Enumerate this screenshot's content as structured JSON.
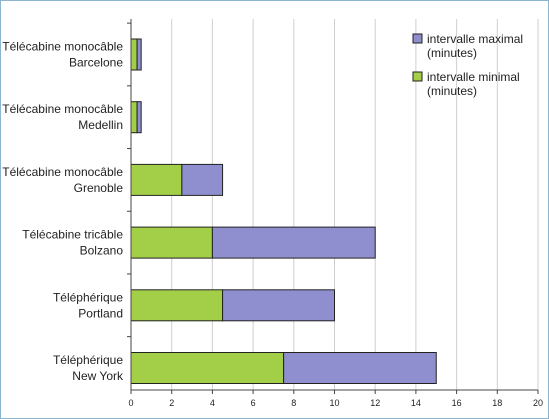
{
  "chart_data": {
    "type": "bar",
    "orientation": "horizontal",
    "stacked": true,
    "categories": [
      [
        "Télécabine monocâble",
        "Barcelone"
      ],
      [
        "Télécabine monocâble",
        "Medellin"
      ],
      [
        "Télécabine monocâble",
        "Grenoble"
      ],
      [
        "Télécabine tricâble",
        "Bolzano"
      ],
      [
        "Téléphérique",
        "Portland"
      ],
      [
        "Téléphérique",
        "New York"
      ]
    ],
    "series": [
      {
        "name": [
          "intervalle minimal",
          "(minutes)"
        ],
        "color": "#a3cf48",
        "values": [
          0.3,
          0.3,
          2.5,
          4,
          4.5,
          7.5
        ]
      },
      {
        "name": [
          "intervalle maximal",
          "(minutes)"
        ],
        "color": "#8f8fcf",
        "values": [
          0.2,
          0.2,
          2,
          8,
          5.5,
          7.5
        ]
      }
    ],
    "xlim": [
      0,
      20
    ],
    "xticks": [
      0,
      2,
      4,
      6,
      8,
      10,
      12,
      14,
      16,
      18,
      20
    ],
    "grid": "vertical",
    "legend": "top-right",
    "legend_order": [
      1,
      0
    ],
    "title": "",
    "xlabel": "",
    "ylabel": ""
  }
}
